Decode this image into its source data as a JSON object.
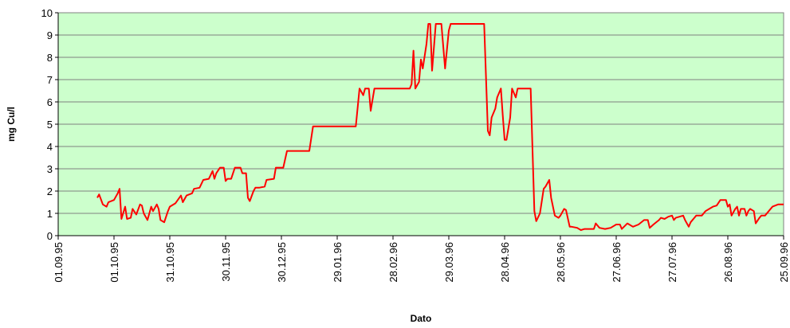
{
  "chart_data": {
    "type": "line",
    "xlabel": "Dato",
    "ylabel": "mg Cu/l",
    "x": [
      "22.09.95",
      "23.09.95",
      "25.09.95",
      "27.09.95",
      "28.09.95",
      "01.10.95",
      "03.10.95",
      "04.10.95",
      "05.10.95",
      "07.10.95",
      "08.10.95",
      "10.10.95",
      "11.10.95",
      "13.10.95",
      "15.10.95",
      "16.10.95",
      "17.10.95",
      "19.10.95",
      "21.10.95",
      "22.10.95",
      "24.10.95",
      "25.10.95",
      "26.10.95",
      "28.10.95",
      "30.10.95",
      "31.10.95",
      "03.11.95",
      "06.11.95",
      "07.11.95",
      "09.11.95",
      "12.11.95",
      "13.11.95",
      "16.11.95",
      "18.11.95",
      "21.11.95",
      "23.11.95",
      "24.11.95",
      "25.11.95",
      "27.11.95",
      "29.11.95",
      "30.11.95",
      "01.12.95",
      "03.12.95",
      "05.12.95",
      "08.12.95",
      "09.12.95",
      "11.12.95",
      "12.12.95",
      "13.12.95",
      "15.12.95",
      "16.12.95",
      "18.12.95",
      "21.12.95",
      "22.12.95",
      "26.12.95",
      "27.12.95",
      "31.12.95",
      "02.01.96",
      "14.01.96",
      "16.01.96",
      "08.02.96",
      "10.02.96",
      "12.02.96",
      "13.02.96",
      "15.02.96",
      "16.02.96",
      "18.02.96",
      "08.03.96",
      "09.03.96",
      "10.03.96",
      "11.03.96",
      "13.03.96",
      "14.03.96",
      "15.03.96",
      "17.03.96",
      "18.03.96",
      "19.03.96",
      "20.03.96",
      "22.03.96",
      "25.03.96",
      "26.03.96",
      "27.03.96",
      "29.03.96",
      "30.03.96",
      "17.04.96",
      "19.04.96",
      "20.04.96",
      "21.04.96",
      "23.04.96",
      "24.04.96",
      "26.04.96",
      "27.04.96",
      "28.04.96",
      "29.04.96",
      "01.05.96",
      "02.05.96",
      "04.05.96",
      "05.05.96",
      "12.05.96",
      "14.05.96",
      "15.05.96",
      "17.05.96",
      "19.05.96",
      "20.05.96",
      "22.05.96",
      "23.05.96",
      "25.05.96",
      "27.05.96",
      "28.05.96",
      "30.05.96",
      "31.05.96",
      "02.06.96",
      "03.06.96",
      "06.06.96",
      "08.06.96",
      "10.06.96",
      "15.06.96",
      "16.06.96",
      "18.06.96",
      "21.06.96",
      "24.06.96",
      "27.06.96",
      "29.06.96",
      "30.06.96",
      "03.07.96",
      "04.07.96",
      "06.07.96",
      "09.07.96",
      "12.07.96",
      "14.07.96",
      "15.07.96",
      "17.07.96",
      "20.07.96",
      "21.07.96",
      "23.07.96",
      "25.07.96",
      "27.07.96",
      "28.07.96",
      "29.07.96",
      "02.08.96",
      "03.08.96",
      "05.08.96",
      "06.08.96",
      "08.08.96",
      "09.08.96",
      "12.08.96",
      "14.08.96",
      "16.08.96",
      "18.08.96",
      "20.08.96",
      "22.08.96",
      "25.08.96",
      "26.08.96",
      "27.08.96",
      "28.08.96",
      "30.08.96",
      "31.08.96",
      "01.09.96",
      "02.09.96",
      "04.09.96",
      "05.09.96",
      "06.09.96",
      "07.09.96",
      "09.09.96",
      "10.09.96",
      "12.09.96",
      "13.09.96",
      "15.09.96",
      "17.09.96",
      "19.09.96",
      "22.09.96",
      "25.09.96"
    ],
    "series": [
      {
        "name": "mg Cu/l",
        "color": "#ff0000",
        "values": [
          1.7,
          1.85,
          1.4,
          1.3,
          1.5,
          1.6,
          1.9,
          2.1,
          0.75,
          1.3,
          0.75,
          0.8,
          1.2,
          0.95,
          1.4,
          1.35,
          1.0,
          0.7,
          1.3,
          1.1,
          1.4,
          1.2,
          0.7,
          0.6,
          1.1,
          1.3,
          1.45,
          1.8,
          1.5,
          1.8,
          1.9,
          2.1,
          2.15,
          2.5,
          2.55,
          2.9,
          2.55,
          2.8,
          3.05,
          3.05,
          2.45,
          2.55,
          2.55,
          3.05,
          3.05,
          2.8,
          2.8,
          1.7,
          1.55,
          2.0,
          2.15,
          2.15,
          2.2,
          2.5,
          2.55,
          3.05,
          3.05,
          3.8,
          3.8,
          4.9,
          4.9,
          6.6,
          6.3,
          6.6,
          6.6,
          5.6,
          6.6,
          6.6,
          6.8,
          8.3,
          6.6,
          6.9,
          7.9,
          7.5,
          8.6,
          9.5,
          9.5,
          7.4,
          9.5,
          9.5,
          8.5,
          7.5,
          9.2,
          9.5,
          9.5,
          4.7,
          4.5,
          5.3,
          5.7,
          6.2,
          6.6,
          5.4,
          4.3,
          4.3,
          5.3,
          6.6,
          6.2,
          6.6,
          6.6,
          1.1,
          0.65,
          1.0,
          2.1,
          2.2,
          2.5,
          1.7,
          0.9,
          0.8,
          0.9,
          1.2,
          1.15,
          0.4,
          0.4,
          0.35,
          0.25,
          0.3,
          0.3,
          0.55,
          0.35,
          0.3,
          0.35,
          0.5,
          0.5,
          0.3,
          0.55,
          0.5,
          0.4,
          0.5,
          0.7,
          0.7,
          0.35,
          0.5,
          0.7,
          0.8,
          0.75,
          0.85,
          0.9,
          0.7,
          0.8,
          0.9,
          0.7,
          0.4,
          0.6,
          0.8,
          0.9,
          0.9,
          1.1,
          1.2,
          1.3,
          1.35,
          1.6,
          1.6,
          1.3,
          1.4,
          0.9,
          1.2,
          1.3,
          0.9,
          1.2,
          1.2,
          0.9,
          1.1,
          1.2,
          1.1,
          0.55,
          0.8,
          0.9,
          0.9,
          1.1,
          1.3,
          1.4,
          1.4
        ]
      }
    ],
    "xlim": [
      "01.09.95",
      "25.09.96"
    ],
    "xticks": [
      "01.09.95",
      "01.10.95",
      "31.10.95",
      "30.11.95",
      "30.12.95",
      "29.01.96",
      "28.02.96",
      "29.03.96",
      "28.04.96",
      "28.05.96",
      "27.06.96",
      "27.07.96",
      "26.08.96",
      "25.09.96"
    ],
    "ylim": [
      0,
      10
    ],
    "yticks": [
      0,
      1,
      2,
      3,
      4,
      5,
      6,
      7,
      8,
      9,
      10
    ],
    "grid": true,
    "plot_background": "#ccffcc"
  }
}
